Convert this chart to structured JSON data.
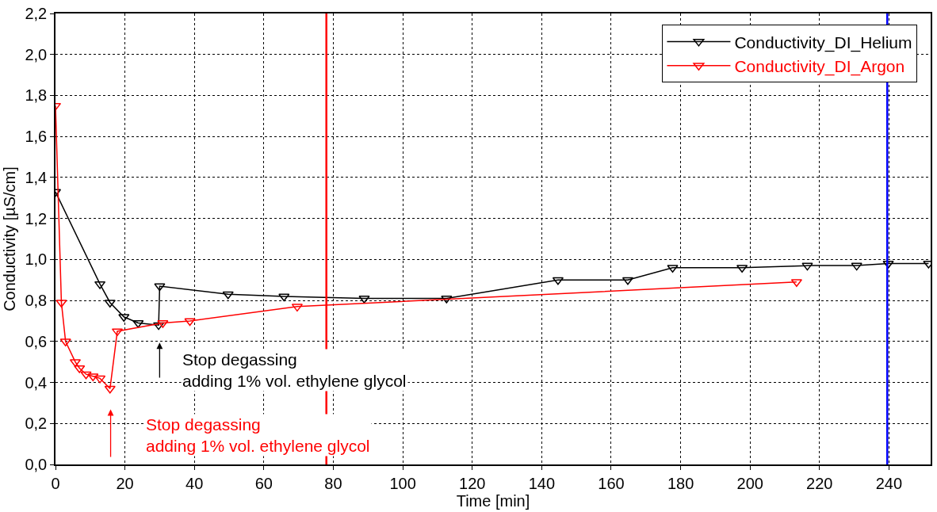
{
  "chart_data": {
    "type": "line",
    "xlabel": "Time [min]",
    "ylabel": "Conductivity [µS/cm]",
    "xlim": [
      0,
      252
    ],
    "xticks": [
      0,
      20,
      40,
      60,
      80,
      100,
      120,
      140,
      160,
      180,
      200,
      220,
      240
    ],
    "ylim": [
      0,
      2.2
    ],
    "yticks": [
      {
        "value": 0,
        "label": "0,0"
      },
      {
        "value": 0.2,
        "label": "0,2"
      },
      {
        "value": 0.4,
        "label": "0,4"
      },
      {
        "value": 0.6,
        "label": "0,6"
      },
      {
        "value": 0.8,
        "label": "0,8"
      },
      {
        "value": 1.0,
        "label": "1,0"
      },
      {
        "value": 1.2,
        "label": "1,2"
      },
      {
        "value": 1.4,
        "label": "1,4"
      },
      {
        "value": 1.6,
        "label": "1,6"
      },
      {
        "value": 1.8,
        "label": "1,8"
      },
      {
        "value": 2.0,
        "label": "2,0"
      },
      {
        "value": 2.2,
        "label": "2,2"
      }
    ],
    "grid": true,
    "legend": "top right",
    "marker": "triangle",
    "line_style": "solid",
    "series": [
      {
        "name": "Conductivity_DI_Helium",
        "color": "#000000",
        "x": [
          0,
          12.8,
          15.7,
          19.7,
          23.8,
          29.7,
          30,
          49.7,
          65.8,
          88.9,
          112.6,
          144.7,
          164.8,
          177.7,
          197.7,
          216.5,
          230.7,
          239.8,
          251.4
        ],
        "values": [
          1.33,
          0.88,
          0.79,
          0.72,
          0.69,
          0.68,
          0.87,
          0.83,
          0.82,
          0.81,
          0.81,
          0.9,
          0.9,
          0.96,
          0.96,
          0.97,
          0.97,
          0.98,
          0.98
        ]
      },
      {
        "name": "Conductivity_DI_Argon",
        "color": "#ff0000",
        "x": [
          0,
          1.7,
          2.9,
          5.7,
          6.9,
          8.8,
          10.8,
          12.8,
          15.7,
          17.8,
          30.9,
          38.7,
          69.6,
          213.4
        ],
        "values": [
          1.75,
          0.79,
          0.6,
          0.5,
          0.47,
          0.44,
          0.43,
          0.42,
          0.37,
          0.65,
          0.69,
          0.7,
          0.77,
          0.89
        ]
      }
    ],
    "ref_lines": [
      {
        "axis": "x",
        "value": 78,
        "color": "#ff0000"
      },
      {
        "axis": "x",
        "value": 239.5,
        "color": "#0000ff"
      }
    ],
    "annotations": [
      "Stop degassing\nadding 1% vol. ethylene glycol",
      "Stop degassing\nadding 1% vol. ethylene glycol"
    ]
  }
}
